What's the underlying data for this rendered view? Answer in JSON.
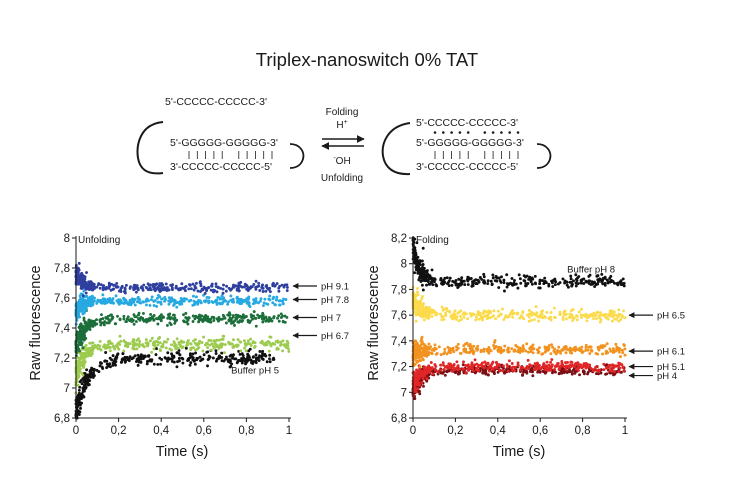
{
  "figure_title": "Triplex-nanoswitch 0% TAT",
  "scheme": {
    "left_top_strand": "5'-CCCCC-CCCCC-3'",
    "left_middle_strand": "5'-GGGGG-GGGGG-3'",
    "left_bottom_strand": "3'-CCCCC-CCCCC-5'",
    "right_top_strand": "5'-CCCCC-CCCCC-3'",
    "right_middle_strand": "5'-GGGGG-GGGGG-3'",
    "right_bottom_strand": "3'-CCCCC-CCCCC-5'",
    "folding_label": "Folding",
    "unfolding_label": "Unfolding",
    "forward_reagent": "H",
    "forward_reagent_sup": "+",
    "reverse_reagent_sup": "-",
    "reverse_reagent": "OH"
  },
  "colors": {
    "black": "#111111",
    "pH_9_1": "#2e3f9e",
    "pH_7_8": "#27a9e1",
    "pH_7": "#1c6e3a",
    "pH_6_7": "#9ccb4f",
    "pH_6_5": "#fbdb4b",
    "pH_6_1": "#f2921f",
    "pH_5_1": "#e02626",
    "pH_4": "#7a0f14"
  },
  "chart_data": [
    {
      "type": "scatter",
      "panel_label": "Unfolding",
      "xlabel": "Time (s)",
      "ylabel": "Raw fluorescence",
      "xlim": [
        0,
        1
      ],
      "ylim": [
        6.8,
        8.0
      ],
      "x_ticks": [
        0,
        0.2,
        0.4,
        0.6,
        0.8,
        1
      ],
      "x_tick_labels": [
        "0",
        "0,2",
        "0,4",
        "0,6",
        "0,8",
        "1"
      ],
      "y_ticks": [
        6.8,
        7.0,
        7.2,
        7.4,
        7.6,
        7.8,
        8.0
      ],
      "y_tick_labels": [
        "6,8",
        "7",
        "7,2",
        "7,4",
        "7,6",
        "7,8",
        "8"
      ],
      "series": [
        {
          "name": "Buffer pH 5",
          "color_key": "black",
          "start": 6.85,
          "plateau": 7.2,
          "tau": 0.06,
          "spread": 0.022,
          "xmax": 0.93
        },
        {
          "name": "pH 6.7",
          "color_key": "pH_6_7",
          "start": 7.08,
          "plateau": 7.29,
          "tau": 0.04,
          "spread": 0.022,
          "xmax": 1.0
        },
        {
          "name": "pH 7",
          "color_key": "pH_7",
          "start": 7.28,
          "plateau": 7.46,
          "tau": 0.04,
          "spread": 0.018,
          "xmax": 1.0
        },
        {
          "name": "pH 7.8",
          "color_key": "pH_7_8",
          "start": 7.5,
          "plateau": 7.58,
          "tau": 0.03,
          "spread": 0.016,
          "xmax": 1.0
        },
        {
          "name": "pH 9.1",
          "color_key": "pH_9_1",
          "start": 7.76,
          "plateau": 7.67,
          "tau": 0.03,
          "spread": 0.016,
          "xmax": 1.0
        }
      ],
      "annotations": [
        {
          "text": "pH 9.1",
          "y": 7.68,
          "arrow": true
        },
        {
          "text": "pH 7.8",
          "y": 7.59,
          "arrow": true
        },
        {
          "text": "pH 7",
          "y": 7.47,
          "arrow": true
        },
        {
          "text": "pH 6.7",
          "y": 7.35,
          "arrow": true
        },
        {
          "text": "Buffer pH 5",
          "y": 7.12,
          "arrow": false
        }
      ]
    },
    {
      "type": "scatter",
      "panel_label": "Folding",
      "xlabel": "Time (s)",
      "ylabel": "Raw fluorescence",
      "xlim": [
        0,
        1
      ],
      "ylim": [
        6.8,
        8.2
      ],
      "x_ticks": [
        0,
        0.2,
        0.4,
        0.6,
        0.8,
        1
      ],
      "x_tick_labels": [
        "0",
        "0,2",
        "0,4",
        "0,6",
        "0,8",
        "1"
      ],
      "y_ticks": [
        6.8,
        7.0,
        7.2,
        7.4,
        7.6,
        7.8,
        8.0,
        8.2
      ],
      "y_tick_labels": [
        "6,8",
        "7",
        "7,2",
        "7,4",
        "7,6",
        "7,8",
        "8",
        "8,2"
      ],
      "series": [
        {
          "name": "pH 4",
          "color_key": "pH_4",
          "start": 7.0,
          "plateau": 7.17,
          "tau": 0.04,
          "spread": 0.018,
          "xmax": 1.0
        },
        {
          "name": "pH 5.1",
          "color_key": "pH_5_1",
          "start": 7.05,
          "plateau": 7.2,
          "tau": 0.04,
          "spread": 0.02,
          "xmax": 1.0
        },
        {
          "name": "pH 6.1",
          "color_key": "pH_6_1",
          "start": 7.3,
          "plateau": 7.33,
          "tau": 0.04,
          "spread": 0.02,
          "xmax": 1.0
        },
        {
          "name": "pH 6.5",
          "color_key": "pH_6_5",
          "start": 7.72,
          "plateau": 7.6,
          "tau": 0.04,
          "spread": 0.022,
          "xmax": 1.0
        },
        {
          "name": "Buffer pH 8",
          "color_key": "black",
          "start": 8.12,
          "plateau": 7.86,
          "tau": 0.03,
          "spread": 0.025,
          "xmax": 1.0
        }
      ],
      "annotations": [
        {
          "text": "Buffer pH 8",
          "y": 7.96,
          "arrow": false
        },
        {
          "text": "pH 6.5",
          "y": 7.6,
          "arrow": true
        },
        {
          "text": "pH 6.1",
          "y": 7.32,
          "arrow": true
        },
        {
          "text": "pH 5.1",
          "y": 7.2,
          "arrow": true
        },
        {
          "text": "pH 4",
          "y": 7.13,
          "arrow": true
        }
      ]
    }
  ]
}
